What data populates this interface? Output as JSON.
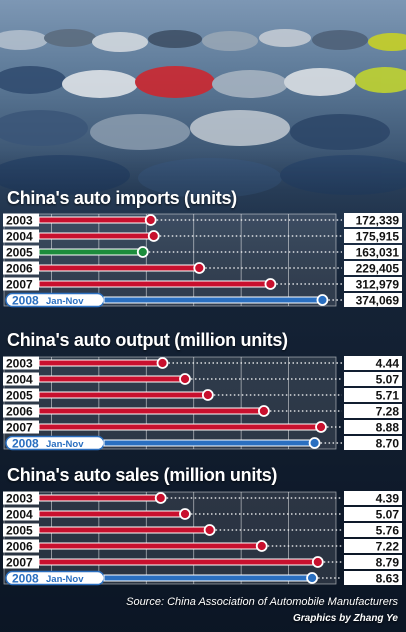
{
  "chart_data": [
    {
      "type": "bar",
      "title": "China's auto imports (units)",
      "categories": [
        "2003",
        "2004",
        "2005",
        "2006",
        "2007",
        "2008"
      ],
      "category_notes": [
        "",
        "",
        "",
        "",
        "",
        "Jan-Nov"
      ],
      "values": [
        172339,
        175915,
        163031,
        229405,
        312979,
        374069
      ],
      "value_labels": [
        "172,339",
        "175,915",
        "163,031",
        "229,405",
        "312,979",
        "374,069"
      ],
      "highlight_index": 5,
      "highlight_color": "#2a6fc0",
      "special": {
        "index": 2,
        "color": "#1c8c3c"
      },
      "bar_color": "#c8102e",
      "xlim": [
        0,
        390000
      ],
      "grid": true
    },
    {
      "type": "bar",
      "title": "China's auto output (million units)",
      "categories": [
        "2003",
        "2004",
        "2005",
        "2006",
        "2007",
        "2008"
      ],
      "category_notes": [
        "",
        "",
        "",
        "",
        "",
        "Jan-Nov"
      ],
      "values": [
        4.44,
        5.07,
        5.71,
        7.28,
        8.88,
        8.7
      ],
      "value_labels": [
        "4.44",
        "5.07",
        "5.71",
        "7.28",
        "8.88",
        "8.70"
      ],
      "highlight_index": 5,
      "highlight_color": "#2a6fc0",
      "bar_color": "#c8102e",
      "xlim": [
        0,
        9.3
      ],
      "grid": true
    },
    {
      "type": "bar",
      "title": "China's auto sales (million units)",
      "categories": [
        "2003",
        "2004",
        "2005",
        "2006",
        "2007",
        "2008"
      ],
      "category_notes": [
        "",
        "",
        "",
        "",
        "",
        "Jan-Nov"
      ],
      "values": [
        4.39,
        5.07,
        5.76,
        7.22,
        8.79,
        8.63
      ],
      "value_labels": [
        "4.39",
        "5.07",
        "5.76",
        "7.22",
        "8.79",
        "8.63"
      ],
      "highlight_index": 5,
      "highlight_color": "#2a6fc0",
      "bar_color": "#c8102e",
      "xlim": [
        0,
        9.3
      ],
      "grid": true
    }
  ],
  "footer": {
    "source": "Source: China Association of Automobile Manufacturers",
    "credit": "Graphics by Zhang Ye"
  }
}
